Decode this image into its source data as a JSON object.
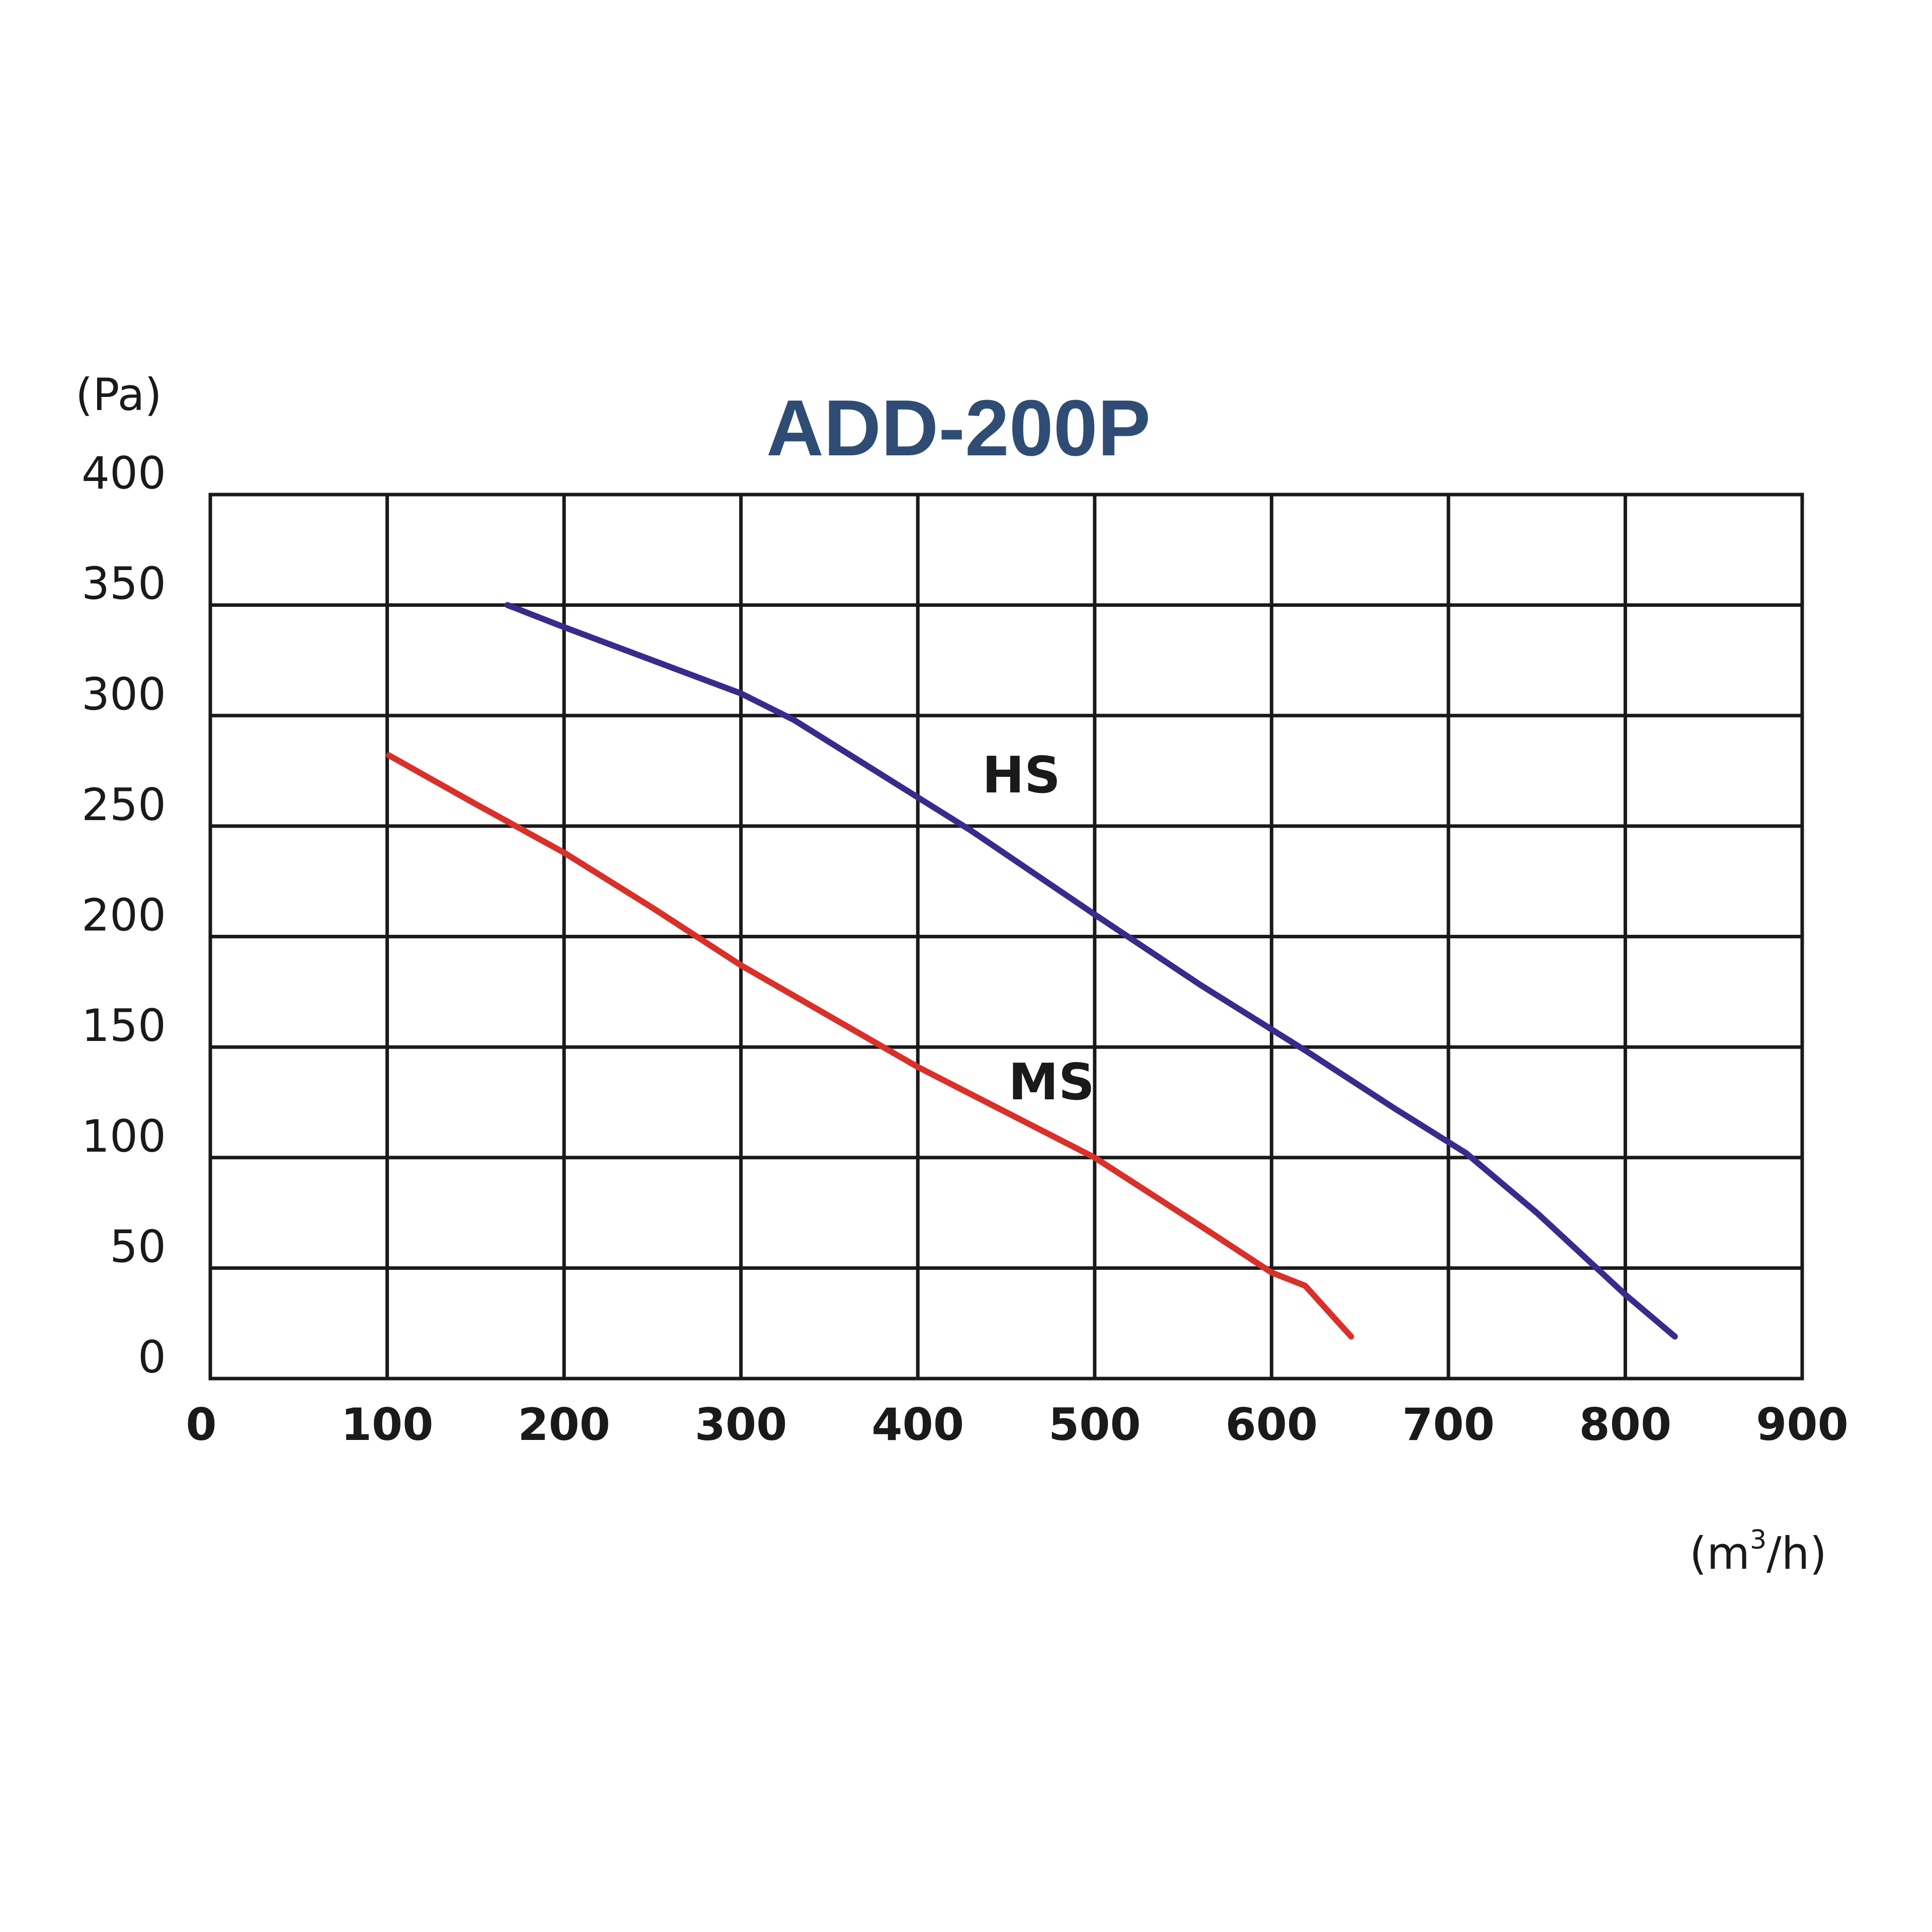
{
  "chart_data": {
    "type": "line",
    "title": "ADD-200P",
    "y_unit": "(Pa)",
    "x_unit_base": "(m",
    "x_unit_sup": "3",
    "x_unit_tail": "/h)",
    "xlim": [
      0,
      900
    ],
    "ylim": [
      0,
      400
    ],
    "x_ticks": [
      "0",
      "100",
      "200",
      "300",
      "400",
      "500",
      "600",
      "700",
      "800",
      "900"
    ],
    "y_ticks": [
      "0",
      "50",
      "100",
      "150",
      "200",
      "250",
      "300",
      "350",
      "400"
    ],
    "grid": true,
    "colors": {
      "title": "#2f4d74",
      "HS": "#3a2a8c",
      "MS": "#d9302a"
    },
    "series": [
      {
        "name": "HS",
        "x": [
          168,
          200,
          250,
          300,
          330,
          370,
          430,
          500,
          560,
          620,
          670,
          710,
          750,
          800,
          828
        ],
        "y": [
          350,
          340,
          325,
          310,
          298,
          278,
          248,
          210,
          178,
          148,
          122,
          102,
          75,
          38,
          19
        ]
      },
      {
        "name": "MS",
        "x": [
          101,
          150,
          200,
          250,
          300,
          400,
          500,
          560,
          600,
          619,
          645
        ],
        "y": [
          282,
          260,
          238,
          213,
          187,
          141,
          100,
          69,
          48,
          42,
          19
        ]
      }
    ]
  }
}
